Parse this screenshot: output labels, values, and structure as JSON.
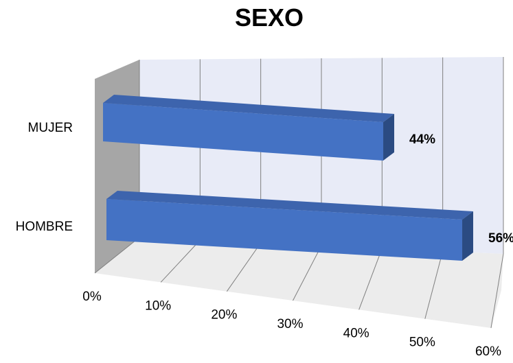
{
  "chart_data": {
    "type": "bar",
    "orientation": "horizontal",
    "style": "3d",
    "title": "SEXO",
    "categories": [
      "MUJER",
      "HOMBRE"
    ],
    "values": [
      44,
      56
    ],
    "value_labels": [
      "44%",
      "56%"
    ],
    "xlim": [
      0,
      60
    ],
    "x_ticks": [
      0,
      10,
      20,
      30,
      40,
      50,
      60
    ],
    "x_tick_labels": [
      "0%",
      "10%",
      "20%",
      "30%",
      "40%",
      "50%",
      "60%"
    ],
    "grid": true,
    "legend": "none",
    "colors": {
      "bar_front": "#4472C4",
      "bar_top": "#3d64ad",
      "bar_side": "#2b4b82",
      "back_wall": "#e8ebf7",
      "side_wall": "#a6a6a6",
      "floor": "#ececec",
      "grid": "#7f7f7f"
    }
  }
}
